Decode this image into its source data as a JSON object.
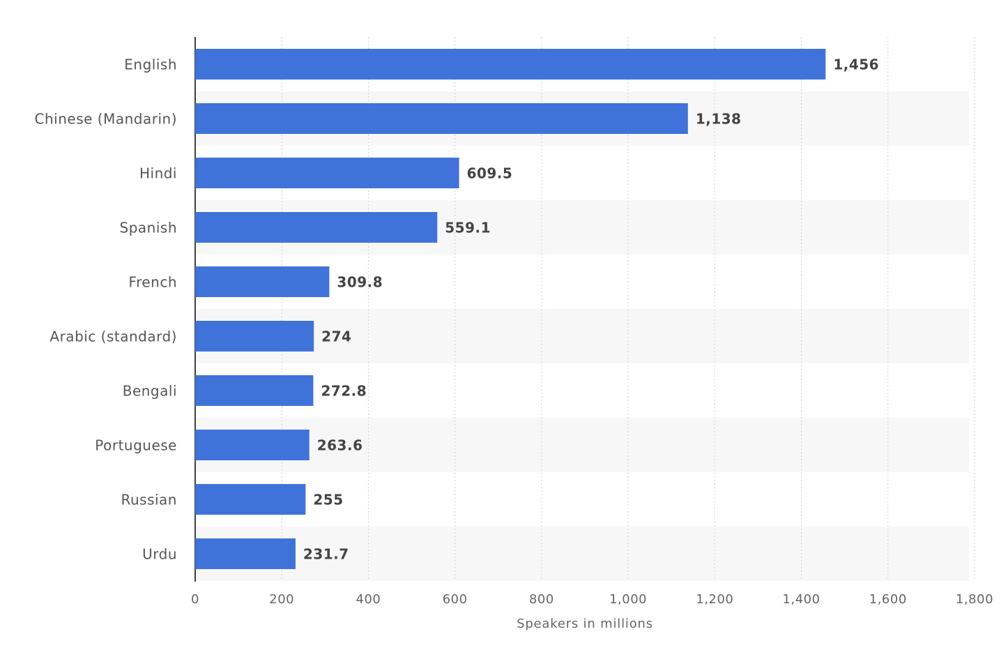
{
  "chart_data": {
    "type": "bar",
    "horizontal": true,
    "x_label": "Speakers in millions",
    "categories": [
      "English",
      "Chinese (Mandarin)",
      "Hindi",
      "Spanish",
      "French",
      "Arabic (standard)",
      "Bengali",
      "Portuguese",
      "Russian",
      "Urdu"
    ],
    "values": [
      1456,
      1138,
      609.5,
      559.1,
      309.8,
      274,
      272.8,
      263.6,
      255,
      231.7
    ],
    "value_labels": [
      "1,456",
      "1,138",
      "609.5",
      "559.1",
      "309.8",
      "274",
      "272.8",
      "263.6",
      "255",
      "231.7"
    ],
    "color": "#3f73d9",
    "xlim": [
      0,
      1800
    ],
    "xticks": [
      0,
      200,
      400,
      600,
      800,
      {
        "value": 1000,
        "label": "1,000"
      },
      {
        "value": 1200,
        "label": "1,200"
      },
      {
        "value": 1400,
        "label": "1,400"
      },
      {
        "value": 1600,
        "label": "1,600"
      },
      {
        "value": 1800,
        "label": "1,800"
      }
    ],
    "grid": true
  }
}
